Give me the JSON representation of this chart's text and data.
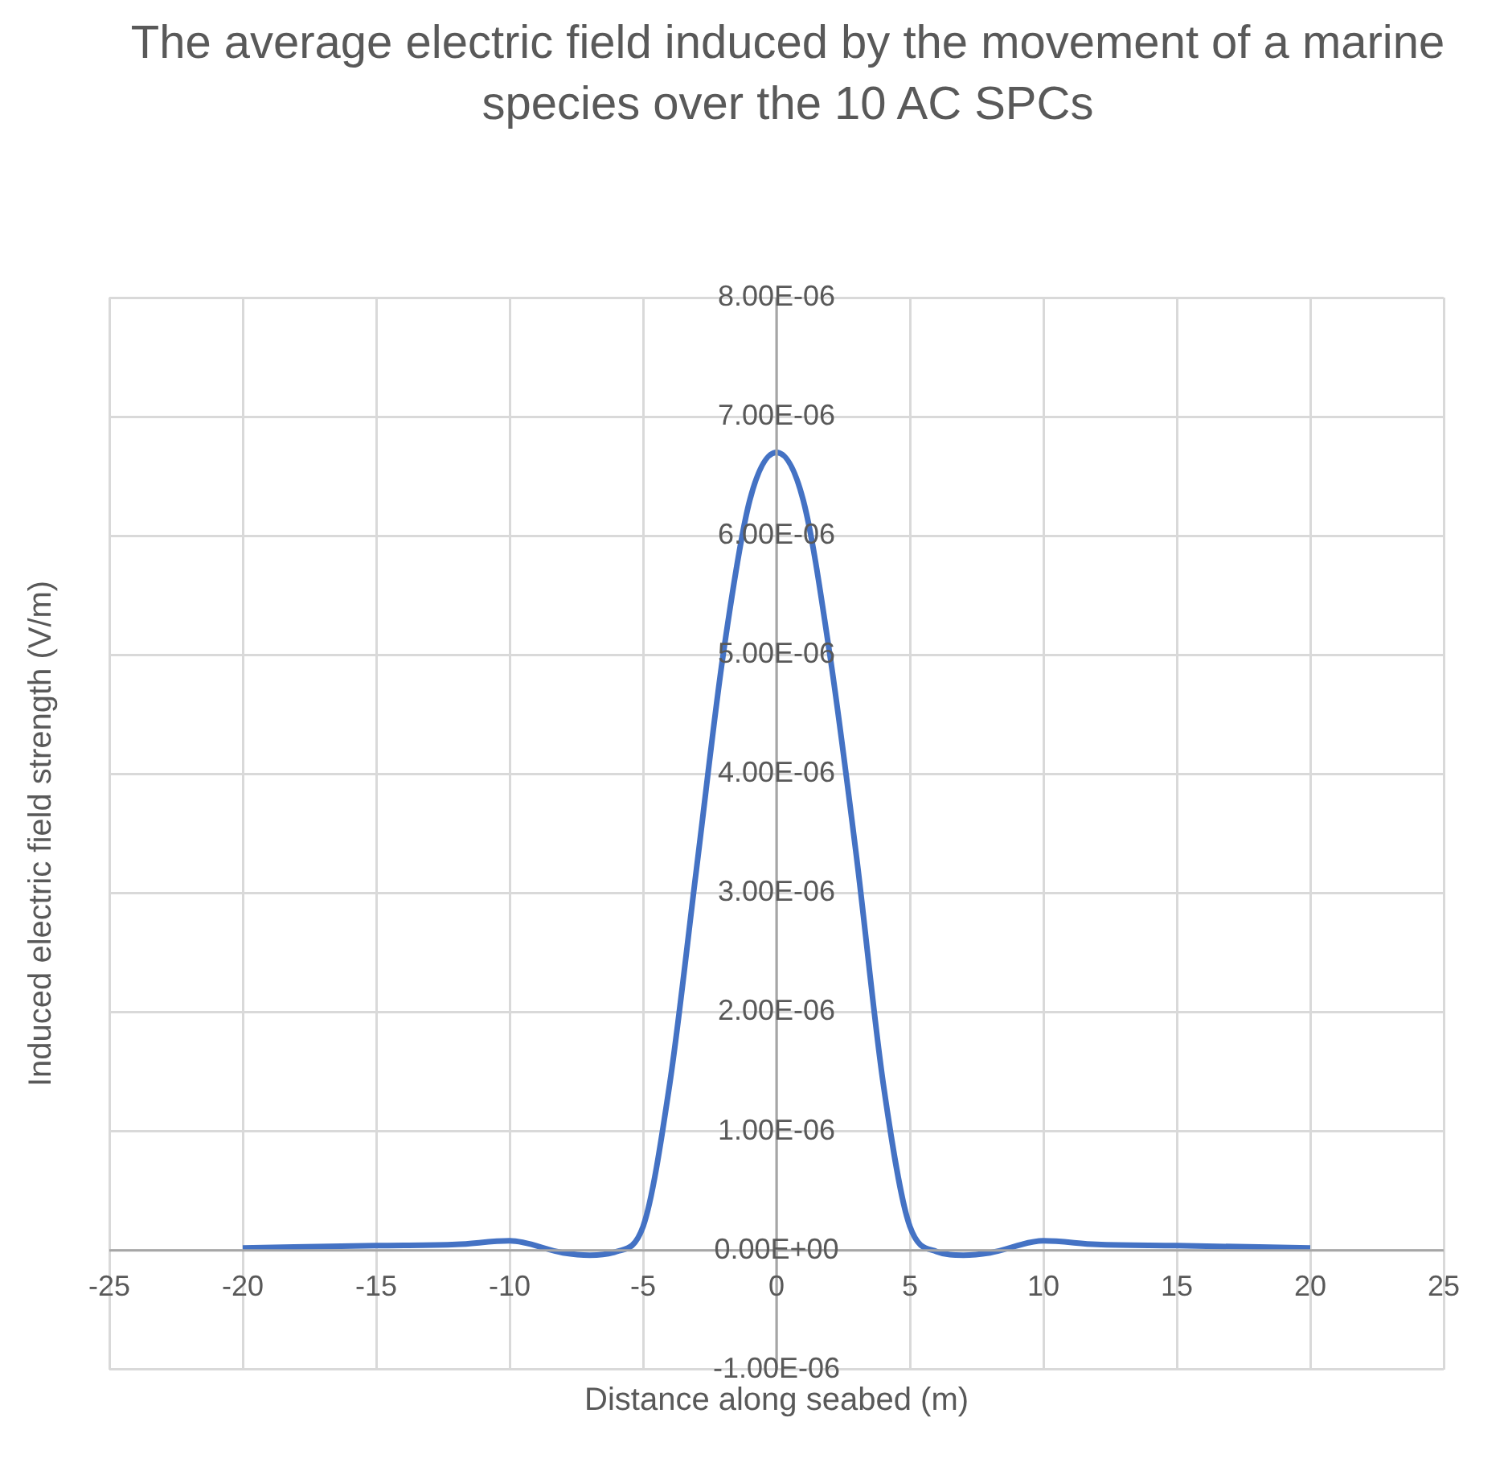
{
  "chart_data": {
    "type": "line",
    "title": "The average electric field induced by the movement of a marine species over the 10 AC SPCs",
    "xlabel": "Distance along seabed (m)",
    "ylabel": "Induced electric field strength (V/m)",
    "x": [
      -20,
      -15,
      -12,
      -10,
      -8,
      -7,
      -6,
      -5,
      -4,
      -3,
      -2,
      -1,
      0,
      1,
      2,
      3,
      4,
      5,
      6,
      7,
      8,
      10,
      12,
      15,
      20
    ],
    "series": [
      {
        "color": "#4472c4",
        "values": [
          2e-08,
          4e-08,
          5e-08,
          8e-08,
          -2e-08,
          -4e-08,
          -1e-08,
          2e-07,
          1.4e-06,
          3.2e-06,
          5e-06,
          6.3e-06,
          6.7e-06,
          6.3e-06,
          5e-06,
          3.3e-06,
          1.4e-06,
          2e-07,
          -1e-08,
          -4e-08,
          -2e-08,
          8e-08,
          5e-08,
          4e-08,
          2e-08
        ]
      }
    ],
    "xlim": [
      -25,
      25
    ],
    "xticks": [
      -25,
      -20,
      -15,
      -10,
      -5,
      0,
      5,
      10,
      15,
      20,
      25
    ],
    "ylim": [
      -1e-06,
      8e-06
    ],
    "yticks": [
      {
        "value": -1e-06,
        "label": "-1.00E-06"
      },
      {
        "value": 0,
        "label": "0.00E+00"
      },
      {
        "value": 1e-06,
        "label": "1.00E-06"
      },
      {
        "value": 2e-06,
        "label": "2.00E-06"
      },
      {
        "value": 3e-06,
        "label": "3.00E-06"
      },
      {
        "value": 4e-06,
        "label": "4.00E-06"
      },
      {
        "value": 5e-06,
        "label": "5.00E-06"
      },
      {
        "value": 6e-06,
        "label": "6.00E-06"
      },
      {
        "value": 7e-06,
        "label": "7.00E-06"
      },
      {
        "value": 8e-06,
        "label": "8.00E-06"
      }
    ],
    "grid": true,
    "legend": false,
    "marker": "none",
    "line_style": "solid"
  }
}
